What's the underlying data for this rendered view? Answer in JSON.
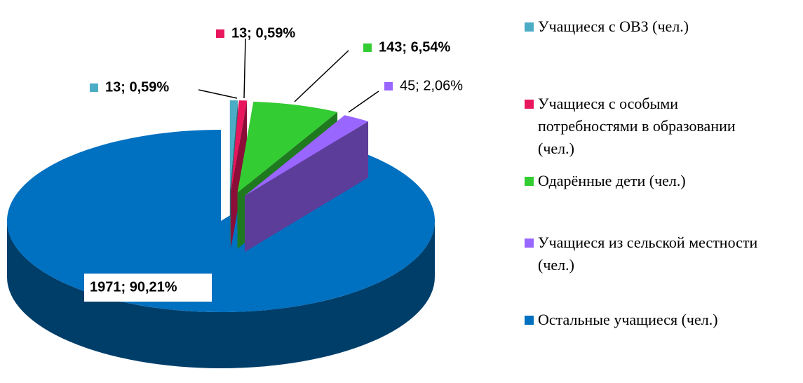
{
  "chart_data": {
    "type": "pie3d",
    "series": [
      {
        "name": "Учащиеся с ОВЗ (чел.)",
        "color": "#4bacc6"
      },
      {
        "name": "Учащиеся с особыми потребностями в образовании (чел.)",
        "color": "#e8175d"
      },
      {
        "name": "Одарённые дети (чел.)",
        "color": "#33cc33"
      },
      {
        "name": "Учащиеся из сельской местности (чел.)",
        "color": "#9966ff"
      },
      {
        "name": "Остальные учащиеся (чел.)",
        "color": "#0070c0"
      }
    ],
    "values": [
      13,
      13,
      143,
      45,
      1971
    ],
    "value_labels": [
      "13; 0,59%",
      "13; 0,59%",
      "143; 6,54%",
      "45; 2,06%",
      "1971; 90,21%"
    ],
    "legend": "right"
  }
}
